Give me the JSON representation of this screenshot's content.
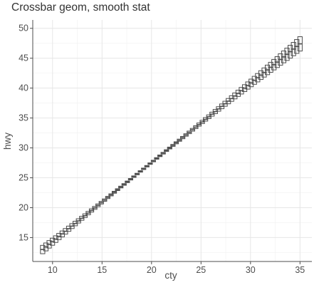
{
  "chart_data": {
    "type": "crossbar",
    "title": "Crossbar geom, smooth stat",
    "xlabel": "cty",
    "ylabel": "hwy",
    "xlim": [
      8.0,
      36.2
    ],
    "ylim": [
      11.0,
      51.4
    ],
    "x_ticks": [
      10,
      15,
      20,
      25,
      30,
      35
    ],
    "y_ticks": [
      15,
      20,
      25,
      30,
      35,
      40,
      45,
      50
    ],
    "grid": true,
    "smooth": {
      "x_start": 9,
      "x_end": 35,
      "n_points": 80,
      "y_start": 13.0,
      "y_end": 47.4,
      "band_at_start": 0.7,
      "band_at_center": 0.12,
      "band_at_end": 1.2,
      "x_center": 19
    }
  }
}
